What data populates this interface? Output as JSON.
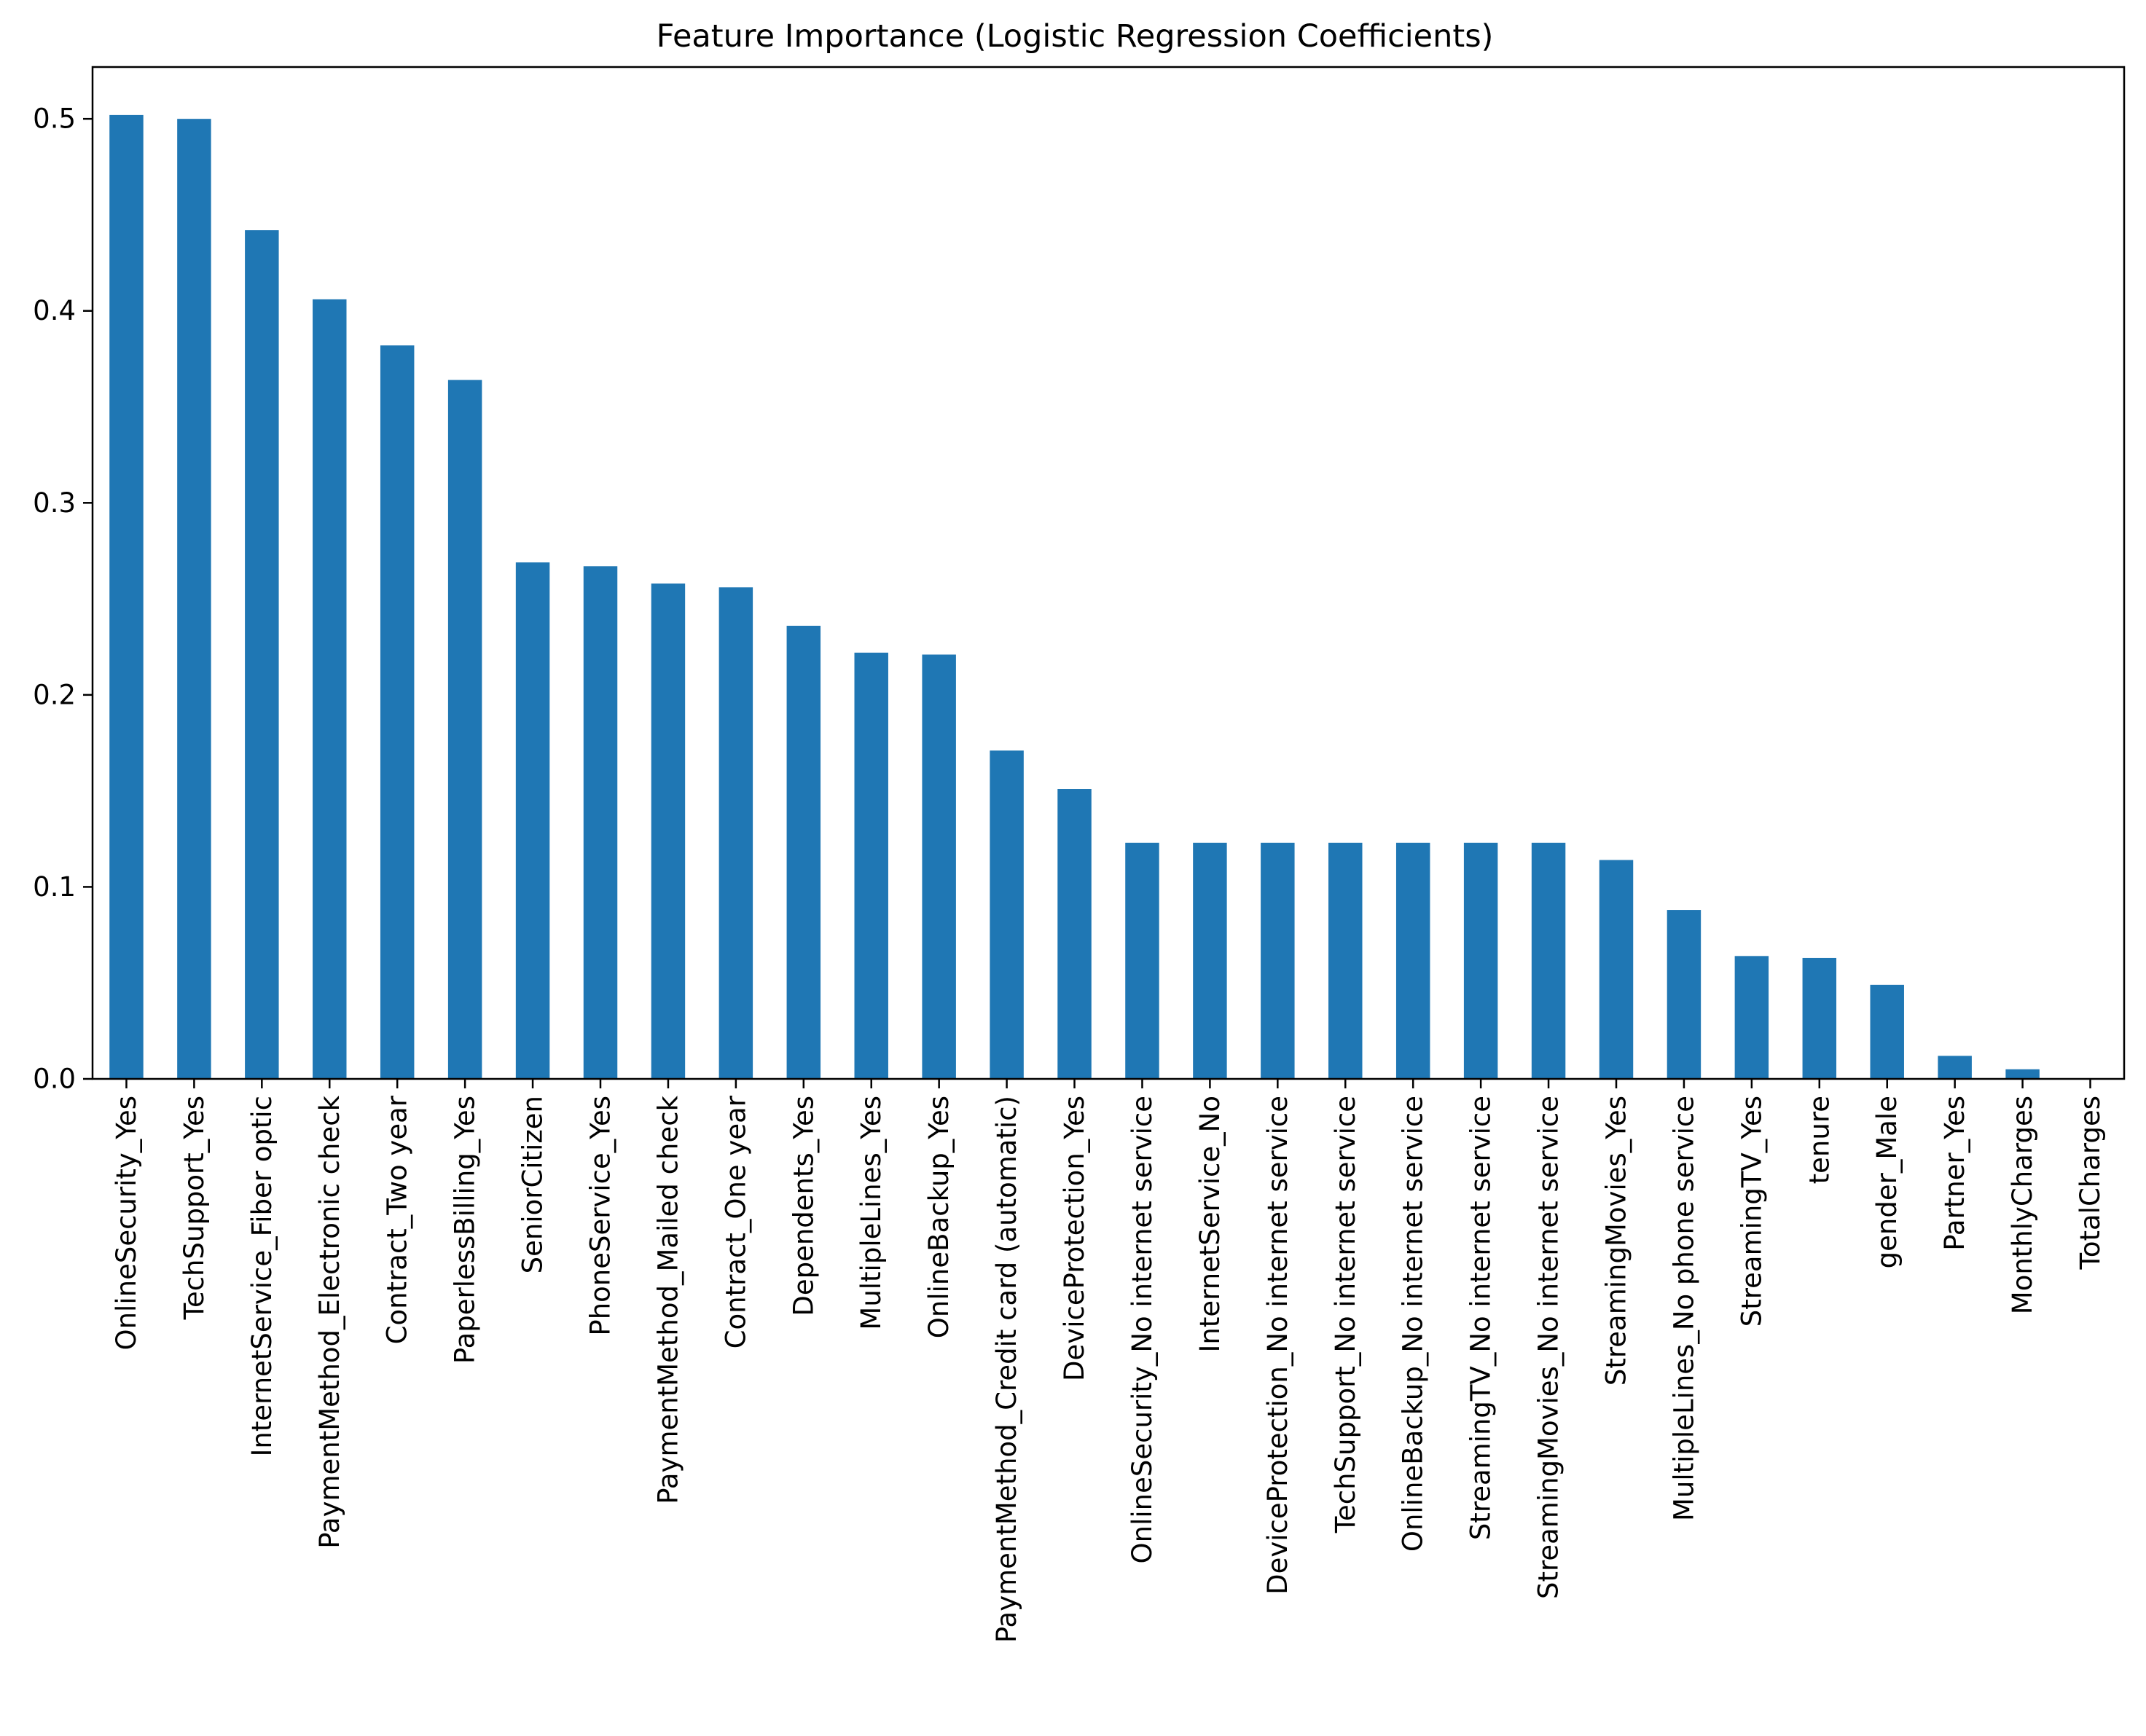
{
  "chart_data": {
    "type": "bar",
    "title": "Feature Importance (Logistic Regression Coefficients)",
    "xlabel": "",
    "ylabel": "",
    "ylim": [
      0,
      0.527
    ],
    "yticks": [
      0.0,
      0.1,
      0.2,
      0.3,
      0.4,
      0.5
    ],
    "ytick_labels": [
      "0.0",
      "0.1",
      "0.2",
      "0.3",
      "0.4",
      "0.5"
    ],
    "grid": false,
    "legend": "none",
    "bar_color": "#1f77b4",
    "categories": [
      "OnlineSecurity_Yes",
      "TechSupport_Yes",
      "InternetService_Fiber optic",
      "PaymentMethod_Electronic check",
      "Contract_Two year",
      "PaperlessBilling_Yes",
      "SeniorCitizen",
      "PhoneService_Yes",
      "PaymentMethod_Mailed check",
      "Contract_One year",
      "Dependents_Yes",
      "MultipleLines_Yes",
      "OnlineBackup_Yes",
      "PaymentMethod_Credit card (automatic)",
      "DeviceProtection_Yes",
      "OnlineSecurity_No internet service",
      "InternetService_No",
      "DeviceProtection_No internet service",
      "TechSupport_No internet service",
      "OnlineBackup_No internet service",
      "StreamingTV_No internet service",
      "StreamingMovies_No internet service",
      "StreamingMovies_Yes",
      "MultipleLines_No phone service",
      "StreamingTV_Yes",
      "tenure",
      "gender_Male",
      "Partner_Yes",
      "MonthlyCharges",
      "TotalCharges"
    ],
    "values": [
      0.502,
      0.5,
      0.442,
      0.406,
      0.382,
      0.364,
      0.269,
      0.267,
      0.258,
      0.256,
      0.236,
      0.222,
      0.221,
      0.171,
      0.151,
      0.123,
      0.123,
      0.123,
      0.123,
      0.123,
      0.123,
      0.123,
      0.114,
      0.088,
      0.064,
      0.063,
      0.049,
      0.012,
      0.005,
      0.0001
    ]
  }
}
